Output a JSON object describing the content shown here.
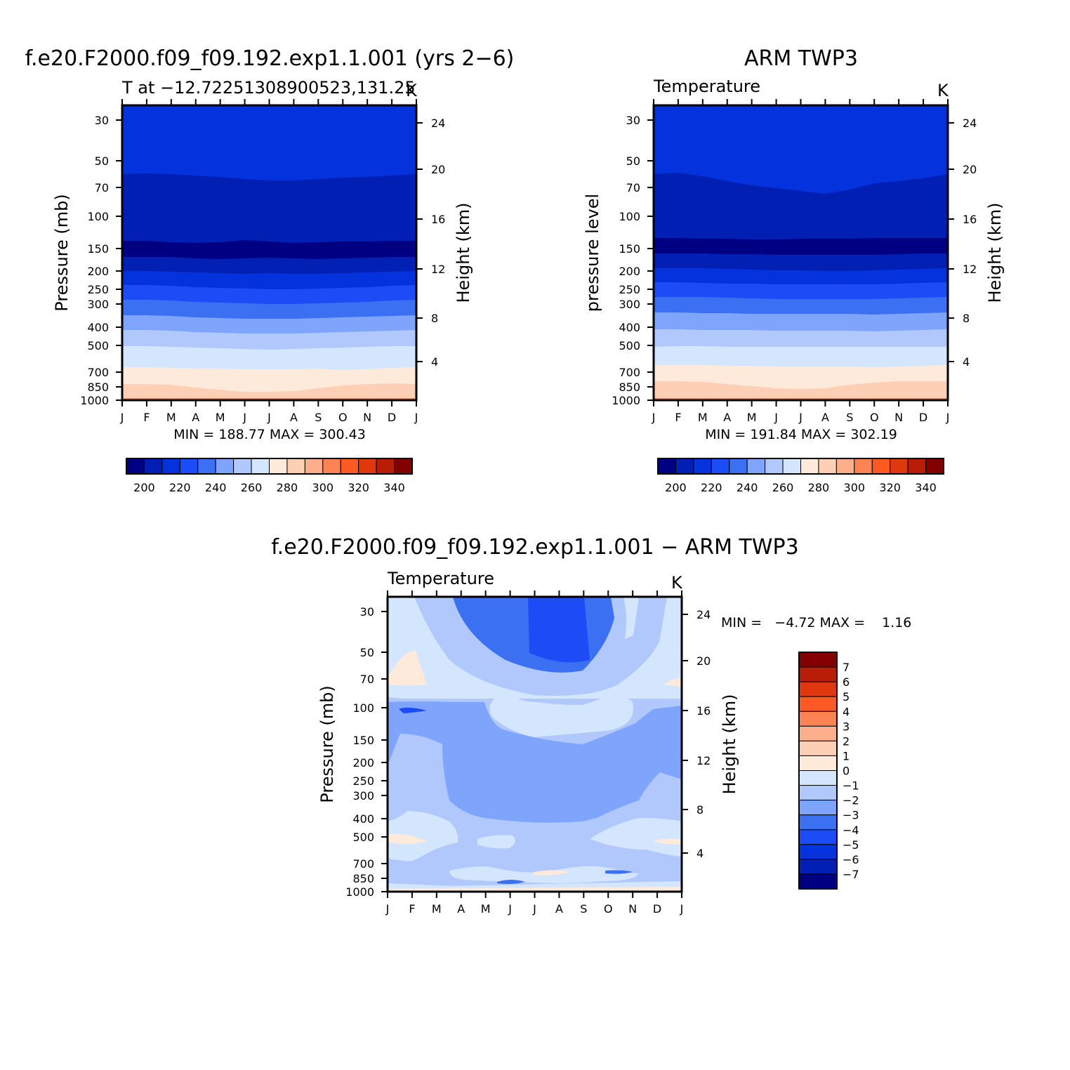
{
  "chart_data": [
    {
      "type": "heatmap",
      "title": "f.e20.F2000.f09_f09.192.exp1.1.001 (yrs 2−6)",
      "subtitle": "T at −12.72251308900523,131.25",
      "units": "K",
      "ylabel": "Pressure (mb)",
      "ylabel_right": "Height (km)",
      "x_ticks": [
        "J",
        "F",
        "M",
        "A",
        "M",
        "J",
        "J",
        "A",
        "S",
        "O",
        "N",
        "D",
        "J"
      ],
      "y_ticks": [
        30,
        50,
        70,
        100,
        150,
        200,
        250,
        300,
        400,
        500,
        700,
        850,
        1000
      ],
      "y_right_ticks": [
        24,
        20,
        16,
        12,
        8,
        4
      ],
      "min_max_text": "MIN = 188.77 MAX = 300.43",
      "contour_bands": [
        {
          "boundaries": [
            194,
            194,
            194,
            193,
            193,
            196,
            193,
            192,
            196,
            193,
            193,
            193,
            194
          ],
          "color": "#0432dc"
        },
        {
          "boundaries": [
            248,
            247,
            248,
            250,
            252,
            255,
            257,
            257,
            255,
            253,
            252,
            250,
            248
          ],
          "color": "#021fb4"
        },
        {
          "boundaries": [
            343,
            343,
            345,
            346,
            345,
            342,
            344,
            346,
            345,
            344,
            344,
            343,
            343
          ],
          "color": "#000082"
        },
        {
          "boundaries": [
            366,
            366,
            366,
            368,
            369,
            368,
            367,
            368,
            369,
            368,
            367,
            366,
            366
          ],
          "color": "#0320b5"
        },
        {
          "boundaries": [
            386,
            386,
            387,
            388,
            389,
            390,
            389,
            390,
            390,
            389,
            388,
            387,
            386
          ],
          "color": "#0433dd"
        },
        {
          "boundaries": [
            406,
            406,
            407,
            409,
            410,
            411,
            412,
            412,
            411,
            410,
            409,
            407,
            406
          ],
          "color": "#1b4cf5"
        },
        {
          "boundaries": [
            427,
            427,
            428,
            430,
            431,
            432,
            433,
            433,
            432,
            431,
            430,
            428,
            427
          ],
          "color": "#3c70f2"
        },
        {
          "boundaries": [
            449,
            449,
            450,
            452,
            453,
            454,
            454,
            454,
            453,
            452,
            451,
            450,
            449
          ],
          "color": "#7ea5fb"
        },
        {
          "boundaries": [
            470,
            470,
            471,
            473,
            474,
            475,
            475,
            475,
            474,
            473,
            472,
            471,
            470
          ],
          "color": "#b0c8fc"
        },
        {
          "boundaries": [
            493,
            493,
            494,
            495,
            496,
            497,
            498,
            497,
            496,
            495,
            494,
            493,
            493
          ],
          "color": "#d4e6fe"
        },
        {
          "boundaries": [
            523,
            523,
            524,
            525,
            525,
            526,
            526,
            526,
            525,
            527,
            526,
            524,
            523
          ],
          "color": "#feeadb"
        },
        {
          "boundaries": [
            547,
            547,
            548,
            552,
            555,
            558,
            558,
            557,
            553,
            549,
            547,
            546,
            547
          ],
          "color": "#fdd0b6"
        },
        {
          "boundaries": [
            568,
            568,
            568,
            568,
            568,
            568,
            568,
            568,
            568,
            568,
            568,
            568,
            568
          ],
          "color": "#fdae8a"
        }
      ],
      "colorbar": {
        "colors": [
          "#000082",
          "#021fb4",
          "#0433dd",
          "#1b4cf5",
          "#3c70f2",
          "#7ea5fb",
          "#b0c8fc",
          "#d4e6fe",
          "#feeadb",
          "#fdd0b6",
          "#fdae8a",
          "#fb8354",
          "#fb5a22",
          "#e0380e",
          "#b81e07",
          "#820000"
        ],
        "labels": [
          "200",
          "220",
          "240",
          "260",
          "280",
          "300",
          "320",
          "340"
        ]
      }
    },
    {
      "type": "heatmap",
      "title": "ARM TWP3",
      "subtitle": "Temperature",
      "units": "K",
      "ylabel": "pressure level",
      "ylabel_right": "Height (km)",
      "x_ticks": [
        "J",
        "F",
        "M",
        "A",
        "M",
        "J",
        "J",
        "A",
        "S",
        "O",
        "N",
        "D",
        "J"
      ],
      "y_ticks": [
        30,
        50,
        70,
        100,
        150,
        200,
        250,
        300,
        400,
        500,
        700,
        850,
        1000
      ],
      "y_right_ticks": [
        24,
        20,
        16,
        12,
        8,
        4
      ],
      "min_max_text": "MIN = 191.84 MAX = 302.19",
      "contour_bands": [
        {
          "boundaries": [
            198,
            199,
            202,
            207,
            212,
            218,
            224,
            225,
            220,
            211,
            210,
            205,
            198
          ],
          "color": "#0432dc"
        },
        {
          "boundaries": [
            248,
            246,
            251,
            258,
            264,
            268,
            272,
            276,
            270,
            261,
            258,
            254,
            248
          ],
          "color": "#021fb4"
        },
        {
          "boundaries": [
            339,
            339,
            340,
            340,
            341,
            341,
            340,
            340,
            340,
            339,
            339,
            339,
            339
          ],
          "color": "#000082"
        },
        {
          "boundaries": [
            361,
            361,
            361,
            362,
            362,
            363,
            363,
            363,
            363,
            363,
            362,
            361,
            361
          ],
          "color": "#0320b5"
        },
        {
          "boundaries": [
            382,
            382,
            382,
            383,
            384,
            385,
            385,
            386,
            386,
            385,
            384,
            383,
            382
          ],
          "color": "#0433dd"
        },
        {
          "boundaries": [
            402,
            402,
            403,
            404,
            404,
            405,
            405,
            405,
            405,
            405,
            404,
            403,
            402
          ],
          "color": "#1b4cf5"
        },
        {
          "boundaries": [
            423,
            423,
            423,
            424,
            425,
            426,
            426,
            426,
            426,
            426,
            425,
            424,
            423
          ],
          "color": "#3c70f2"
        },
        {
          "boundaries": [
            445,
            445,
            446,
            446,
            447,
            447,
            447,
            447,
            447,
            448,
            447,
            446,
            445
          ],
          "color": "#7ea5fb"
        },
        {
          "boundaries": [
            469,
            469,
            470,
            470,
            470,
            471,
            471,
            471,
            471,
            472,
            471,
            470,
            469
          ],
          "color": "#b0c8fc"
        },
        {
          "boundaries": [
            494,
            493,
            493,
            494,
            494,
            494,
            494,
            494,
            494,
            494,
            494,
            494,
            494
          ],
          "color": "#d4e6fe"
        },
        {
          "boundaries": [
            520,
            520,
            520,
            521,
            521,
            522,
            522,
            522,
            522,
            523,
            522,
            521,
            520
          ],
          "color": "#feeadb"
        },
        {
          "boundaries": [
            543,
            543,
            544,
            547,
            550,
            553,
            554,
            553,
            548,
            545,
            543,
            543,
            543
          ],
          "color": "#fdd0b6"
        },
        {
          "boundaries": [
            568,
            568,
            568,
            568,
            568,
            568,
            568,
            568,
            568,
            568,
            568,
            568,
            568
          ],
          "color": "#fdae8a"
        }
      ],
      "colorbar": {
        "colors": [
          "#000082",
          "#021fb4",
          "#0433dd",
          "#1b4cf5",
          "#3c70f2",
          "#7ea5fb",
          "#b0c8fc",
          "#d4e6fe",
          "#feeadb",
          "#fdd0b6",
          "#fdae8a",
          "#fb8354",
          "#fb5a22",
          "#e0380e",
          "#b81e07",
          "#820000"
        ],
        "labels": [
          "200",
          "220",
          "240",
          "260",
          "280",
          "300",
          "320",
          "340"
        ]
      }
    },
    {
      "type": "heatmap",
      "title": "f.e20.F2000.f09_f09.192.exp1.1.001 − ARM TWP3",
      "subtitle": "Temperature",
      "units": "K",
      "ylabel": "Pressure (mb)",
      "ylabel_right": "Height (km)",
      "x_ticks": [
        "J",
        "F",
        "M",
        "A",
        "M",
        "J",
        "J",
        "A",
        "S",
        "O",
        "N",
        "D",
        "J"
      ],
      "y_ticks": [
        30,
        50,
        70,
        100,
        150,
        200,
        250,
        300,
        400,
        500,
        700,
        850,
        1000
      ],
      "y_right_ticks": [
        24,
        20,
        16,
        12,
        8,
        4
      ],
      "min_max_text": "MIN =   −4.72 MAX =    1.16",
      "difference_value_range": [
        -4.72,
        1.16
      ],
      "colorbar": {
        "colors": [
          "#820000",
          "#b81e07",
          "#e0380e",
          "#fb5a22",
          "#fb8354",
          "#fdae8a",
          "#fdd0b6",
          "#feeadb",
          "#d4e6fe",
          "#b0c8fc",
          "#7ea5fb",
          "#3c70f2",
          "#1b4cf5",
          "#0433dd",
          "#021fb4",
          "#000082"
        ],
        "labels": [
          "7",
          "6",
          "5",
          "4",
          "3",
          "2",
          "1",
          "0",
          "−1",
          "−2",
          "−3",
          "−4",
          "−5",
          "−6",
          "−7"
        ]
      }
    }
  ]
}
